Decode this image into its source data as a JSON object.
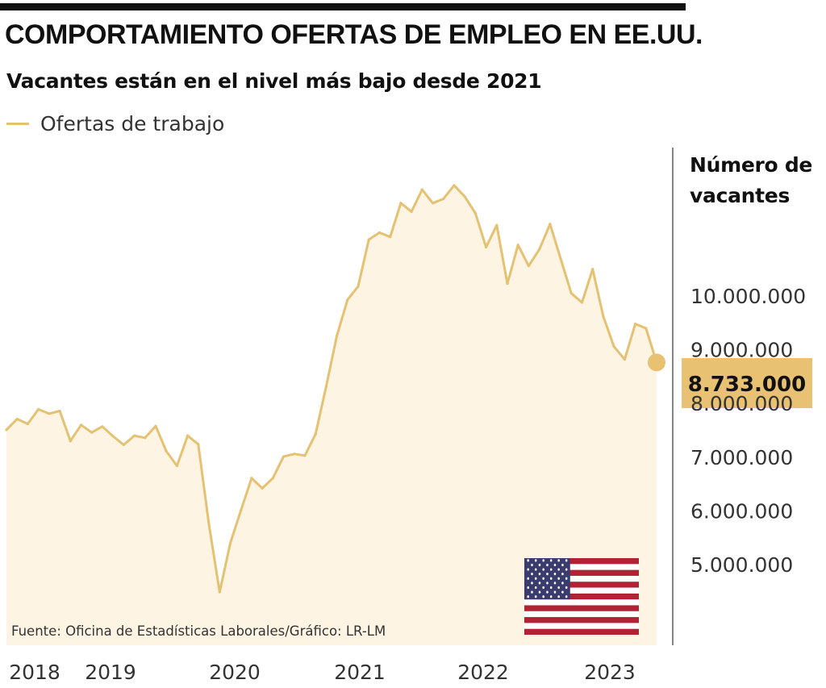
{
  "title": "COMPORTAMIENTO OFERTAS DE EMPLEO EN EE.UU.",
  "subtitle": "Vacantes están en el nivel más bajo desde 2021",
  "legend": {
    "label": "Ofertas de trabajo",
    "color": "#e5c172"
  },
  "y_axis_title": "Número de vacantes",
  "source": "Fuente: Oficina de Estadísticas Laborales/Gráfico: LR-LM",
  "colors": {
    "line": "#e5c172",
    "fill": "#fdf4e4",
    "highlight": "#e8c173",
    "text": "#1a1a1a"
  },
  "flag_icon": "us-flag-icon",
  "chart_data": {
    "type": "area",
    "series": [
      {
        "name": "Ofertas de trabajo",
        "values": [
          7480000,
          7680000,
          7590000,
          7860000,
          7780000,
          7830000,
          7270000,
          7570000,
          7430000,
          7540000,
          7360000,
          7200000,
          7370000,
          7330000,
          7550000,
          7080000,
          6810000,
          7370000,
          7210000,
          5720000,
          4460000,
          5370000,
          5980000,
          6580000,
          6390000,
          6580000,
          6980000,
          7030000,
          7000000,
          7400000,
          8290000,
          9230000,
          9900000,
          10150000,
          11020000,
          11150000,
          11070000,
          11700000,
          11540000,
          11950000,
          11700000,
          11780000,
          12030000,
          11820000,
          11510000,
          10880000,
          11290000,
          10200000,
          10920000,
          10530000,
          10840000,
          11310000,
          10660000,
          10020000,
          9850000,
          10470000,
          9590000,
          9030000,
          8790000,
          9450000,
          9370000,
          8733000
        ]
      }
    ],
    "x_start": "2018-01",
    "x_end": "2023-02",
    "x_tick_labels": [
      "2018",
      "2019",
      "2020",
      "2021",
      "2022",
      "2023"
    ],
    "y_tick_labels": [
      "10.000.000",
      "9.000.000",
      "8.000.000",
      "7.000.000",
      "6.000.000",
      "5.000.000"
    ],
    "y_ticks": [
      10000000,
      9000000,
      8000000,
      7000000,
      6000000,
      5000000
    ],
    "highlight": {
      "value": 8733000,
      "label": "8.733.000"
    },
    "ylim": [
      4000000,
      12500000
    ],
    "grid": false,
    "legend_position": "top-left"
  }
}
